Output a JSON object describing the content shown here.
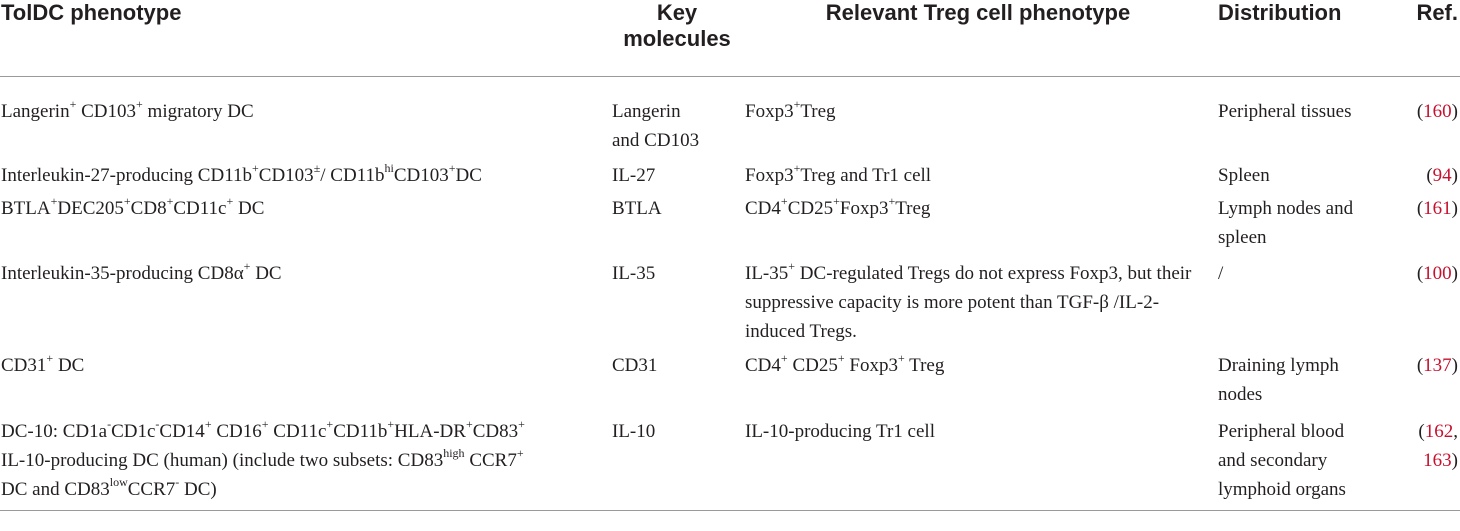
{
  "header": {
    "col1": "TolDC phenotype",
    "col2_line1": "Key",
    "col2_line2": "molecules",
    "col3": "Relevant Treg cell phenotype",
    "col4": "Distribution",
    "col5": "Ref."
  },
  "rows": [
    {
      "phenotype": {
        "a": "Langerin",
        "a_sup": "+",
        "b": " CD103",
        "b_sup": "+",
        "c": " migratory DC"
      },
      "molecules_line1": "Langerin",
      "molecules_line2": "and CD103",
      "treg": {
        "a": "Foxp3",
        "a_sup": "+",
        "b": "Treg"
      },
      "distribution": "Peripheral tissues",
      "ref_open": "(",
      "ref": "160",
      "ref_close": ")"
    },
    {
      "phenotype": {
        "a": "Interleukin-27-producing CD11b",
        "a_sup": "+",
        "b": "CD103",
        "b_sup": "±",
        "c": "/ CD11b",
        "c_sup": "hi",
        "d": "CD103",
        "d_sup": "+",
        "e": "DC"
      },
      "molecules": "IL-27",
      "treg": {
        "a": "Foxp3",
        "a_sup": "+",
        "b": "Treg and Tr1 cell"
      },
      "distribution": "Spleen",
      "ref_open": "(",
      "ref": "94",
      "ref_close": ")"
    },
    {
      "phenotype": {
        "a": "BTLA",
        "a_sup": "+",
        "b": "DEC205",
        "b_sup": "+",
        "c": "CD8",
        "c_sup": "+",
        "d": "CD11c",
        "d_sup": "+",
        "e": " DC"
      },
      "molecules": "BTLA",
      "treg": {
        "a": "CD4",
        "a_sup": "+",
        "b": "CD25",
        "b_sup": "+",
        "c": "Foxp3",
        "c_sup": "+",
        "d": "Treg"
      },
      "distribution_line1": "Lymph nodes and",
      "distribution_line2": "spleen",
      "ref_open": "(",
      "ref": "161",
      "ref_close": ")"
    },
    {
      "phenotype": {
        "a": "Interleukin-35-producing CD8α",
        "a_sup": "+",
        "b": " DC"
      },
      "molecules": "IL-35",
      "treg": {
        "a": "IL-35",
        "a_sup": "+",
        "b": " DC-regulated Tregs do not express Foxp3, but their suppressive capacity is more potent than TGF-β /IL-2-induced Tregs."
      },
      "distribution": "/",
      "ref_open": "(",
      "ref": "100",
      "ref_close": ")"
    },
    {
      "phenotype": {
        "a": "CD31",
        "a_sup": "+",
        "b": " DC"
      },
      "molecules": "CD31",
      "treg": {
        "a": "CD4",
        "a_sup": "+",
        "b": " CD25",
        "b_sup": "+",
        "c": " Foxp3",
        "c_sup": "+",
        "d": " Treg"
      },
      "distribution_line1": "Draining lymph",
      "distribution_line2": "nodes",
      "ref_open": "(",
      "ref": "137",
      "ref_close": ")"
    },
    {
      "phenotype": {
        "a": "DC-10: CD1a",
        "a_sup": "-",
        "b": "CD1c",
        "b_sup": "-",
        "c": "CD14",
        "c_sup": "+",
        "d": " CD16",
        "d_sup": "+",
        "e": " CD11c",
        "e_sup": "+",
        "f": "CD11b",
        "f_sup": "+",
        "g": "HLA-DR",
        "g_sup": "+",
        "h": "CD83",
        "h_sup": "+",
        "line2": "IL-10-producing DC (human) (include two subsets: CD83",
        "line2_sup": "high",
        "line2_b": " CCR7",
        "line2_b_sup": "+",
        "line3_a": "DC and CD83",
        "line3_sup": "low",
        "line3_b": "CCR7",
        "line3_b_sup": "-",
        "line3_c": " DC)"
      },
      "molecules": "IL-10",
      "treg": {
        "a": "IL-10-producing Tr1 cell"
      },
      "distribution_line1": "Peripheral blood",
      "distribution_line2": "and secondary",
      "distribution_line3": "lymphoid organs",
      "ref_open": "(",
      "ref": "162",
      "ref_sep": ",",
      "ref2": "163",
      "ref_close": ")"
    }
  ]
}
